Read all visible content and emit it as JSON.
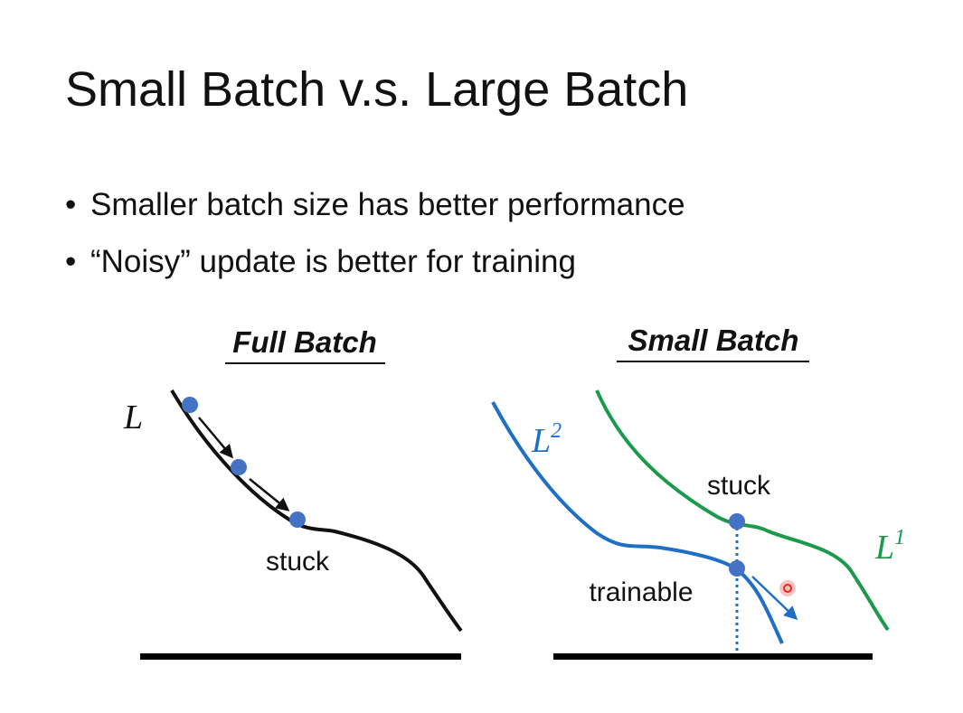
{
  "title": "Small Batch v.s. Large Batch",
  "bullets": [
    "Smaller batch size has better performance",
    "“Noisy” update is better for training"
  ],
  "left_panel": {
    "title": "Full Batch",
    "curve_label": "L",
    "point_label": "stuck"
  },
  "right_panel": {
    "title": "Small Batch",
    "curve_2_label": {
      "base": "L",
      "sup": "2"
    },
    "curve_1_label": {
      "base": "L",
      "sup": "1"
    },
    "upper_point_label": "stuck",
    "lower_point_label": "trainable"
  }
}
